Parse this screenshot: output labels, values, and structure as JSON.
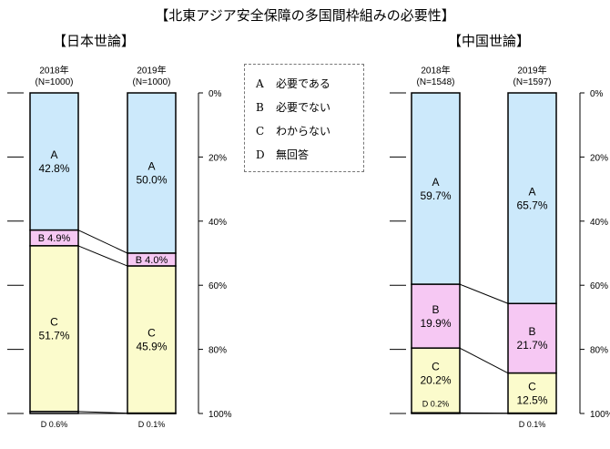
{
  "main_title": "【北東アジア安全保障の多国間枠組みの必要性】",
  "legend": [
    {
      "letter": "A",
      "label": "必要である"
    },
    {
      "letter": "B",
      "label": "必要でない"
    },
    {
      "letter": "C",
      "label": "わからない"
    },
    {
      "letter": "D",
      "label": "無回答"
    }
  ],
  "colors": {
    "A": "#cce9fb",
    "B": "#f6c8f3",
    "C": "#fbfbcc",
    "D": "#ffffff"
  },
  "chart_data": [
    {
      "type": "bar",
      "stacked": true,
      "title": "【日本世論】",
      "categories": [
        "2018年\n(N=1000)",
        "2019年\n(N=1000)"
      ],
      "series": [
        {
          "name": "A",
          "values": [
            42.8,
            50.0
          ],
          "labels": [
            "A\n42.8%",
            "A\n50.0%"
          ]
        },
        {
          "name": "B",
          "values": [
            4.9,
            4.0
          ],
          "labels": [
            "B 4.9%",
            "B 4.0%"
          ]
        },
        {
          "name": "C",
          "values": [
            51.7,
            45.9
          ],
          "labels": [
            "C\n51.7%",
            "C\n45.9%"
          ]
        },
        {
          "name": "D",
          "values": [
            0.6,
            0.1
          ],
          "labels": [
            "D 0.6%",
            "D 0.1%"
          ]
        }
      ],
      "ylim": [
        0,
        100
      ],
      "yticks": [
        "0%",
        "20%",
        "40%",
        "60%",
        "80%",
        "100%"
      ]
    },
    {
      "type": "bar",
      "stacked": true,
      "title": "【中国世論】",
      "categories": [
        "2018年\n(N=1548)",
        "2019年\n(N=1597)"
      ],
      "series": [
        {
          "name": "A",
          "values": [
            59.7,
            65.7
          ],
          "labels": [
            "A\n59.7%",
            "A\n65.7%"
          ]
        },
        {
          "name": "B",
          "values": [
            19.9,
            21.7
          ],
          "labels": [
            "B\n19.9%",
            "B\n21.7%"
          ]
        },
        {
          "name": "C",
          "values": [
            20.2,
            12.5
          ],
          "labels": [
            "C\n20.2%",
            "C\n12.5%"
          ]
        },
        {
          "name": "D",
          "values": [
            0.2,
            0.1
          ],
          "labels": [
            "D 0.2%",
            "D 0.1%"
          ]
        }
      ],
      "ylim": [
        0,
        100
      ],
      "yticks": [
        "0%",
        "20%",
        "40%",
        "60%",
        "80%",
        "100%"
      ]
    }
  ]
}
